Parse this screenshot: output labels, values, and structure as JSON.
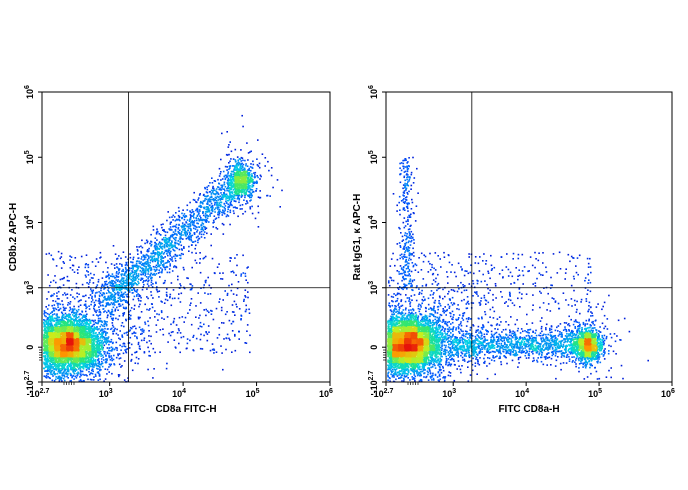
{
  "chart_data": [
    {
      "type": "scatter",
      "density_coloring": true,
      "xlabel": "CD8a FITC-H",
      "ylabel": "CD8b.2 APC-H",
      "axis_scale": "biexponential",
      "xlim": [
        -501,
        1000000
      ],
      "ylim": [
        -501,
        1000000
      ],
      "x_ticks": [
        {
          "base": "-10",
          "exp": "2.7",
          "value": -501
        },
        {
          "base": "10",
          "exp": "3",
          "value": 1000
        },
        {
          "base": "10",
          "exp": "4",
          "value": 10000
        },
        {
          "base": "10",
          "exp": "5",
          "value": 100000
        },
        {
          "base": "10",
          "exp": "6",
          "value": 1000000
        }
      ],
      "y_ticks": [
        {
          "base": "-10",
          "exp": "2.7",
          "value": -501
        },
        {
          "base": "0",
          "exp": "",
          "value": 0
        },
        {
          "base": "10",
          "exp": "3",
          "value": 1000
        },
        {
          "base": "10",
          "exp": "4",
          "value": 10000
        },
        {
          "base": "10",
          "exp": "5",
          "value": 100000
        },
        {
          "base": "10",
          "exp": "6",
          "value": 1000000
        }
      ],
      "quadrant_gate": {
        "x": 1800,
        "y": 1000
      },
      "populations": [
        {
          "center": [
            80,
            60
          ],
          "spread": "high",
          "relative_size": 0.6
        },
        {
          "center": [
            60000,
            45000
          ],
          "spread": "low",
          "relative_size": 0.08
        },
        {
          "from": [
            900,
            800
          ],
          "to": [
            60000,
            45000
          ],
          "kind": "diagonal-stream",
          "relative_size": 0.17
        }
      ],
      "grid": false,
      "legend": "none"
    },
    {
      "type": "scatter",
      "density_coloring": true,
      "xlabel": "FITC CD8a-H",
      "ylabel": "Rat IgG1, κ APC-H",
      "axis_scale": "biexponential",
      "xlim": [
        -501,
        1000000
      ],
      "ylim": [
        -501,
        1000000
      ],
      "x_ticks": [
        {
          "base": "-10",
          "exp": "2.7",
          "value": -501
        },
        {
          "base": "10",
          "exp": "3",
          "value": 1000
        },
        {
          "base": "10",
          "exp": "4",
          "value": 10000
        },
        {
          "base": "10",
          "exp": "5",
          "value": 100000
        },
        {
          "base": "10",
          "exp": "6",
          "value": 1000000
        }
      ],
      "y_ticks": [
        {
          "base": "-10",
          "exp": "2.7",
          "value": -501
        },
        {
          "base": "0",
          "exp": "",
          "value": 0
        },
        {
          "base": "10",
          "exp": "3",
          "value": 1000
        },
        {
          "base": "10",
          "exp": "4",
          "value": 10000
        },
        {
          "base": "10",
          "exp": "5",
          "value": 100000
        },
        {
          "base": "10",
          "exp": "6",
          "value": 1000000
        }
      ],
      "quadrant_gate": {
        "x": 1800,
        "y": 1000
      },
      "populations": [
        {
          "center": [
            0,
            60
          ],
          "spread": "high",
          "relative_size": 0.65
        },
        {
          "center": [
            70000,
            50
          ],
          "spread": "low",
          "relative_size": 0.12
        },
        {
          "from": [
            1000,
            60
          ],
          "to": [
            70000,
            50
          ],
          "kind": "horizontal-bridge",
          "relative_size": 0.12
        },
        {
          "from": [
            0,
            1000
          ],
          "to": [
            0,
            100000
          ],
          "kind": "vertical-tail",
          "relative_size": 0.03
        }
      ],
      "grid": false,
      "legend": "none"
    }
  ]
}
